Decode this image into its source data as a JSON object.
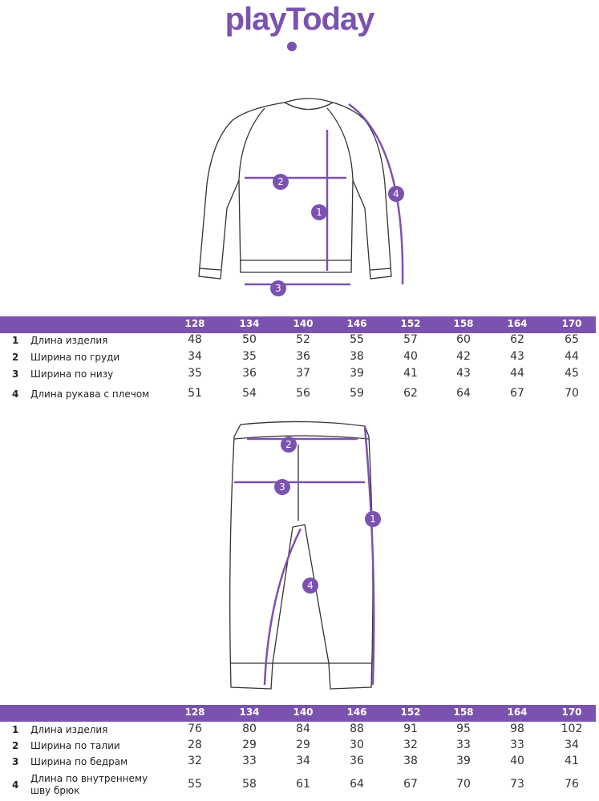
{
  "logo": {
    "text": "playToday",
    "color": "#7b52b0"
  },
  "accent_color": "#7b52b0",
  "top_table": {
    "sizes": [
      "128",
      "134",
      "140",
      "146",
      "152",
      "158",
      "164",
      "170"
    ],
    "rows": [
      {
        "num": "1",
        "label": "Длина изделия",
        "values": [
          "48",
          "50",
          "52",
          "55",
          "57",
          "60",
          "62",
          "65"
        ]
      },
      {
        "num": "2",
        "label": "Ширина по груди",
        "values": [
          "34",
          "35",
          "36",
          "38",
          "40",
          "42",
          "43",
          "44"
        ]
      },
      {
        "num": "3",
        "label": "Ширина по низу",
        "values": [
          "35",
          "36",
          "37",
          "39",
          "41",
          "43",
          "44",
          "45"
        ]
      },
      {
        "num": "4",
        "label": "Длина рукава с плечом",
        "values": [
          "51",
          "54",
          "56",
          "59",
          "62",
          "64",
          "67",
          "70"
        ]
      }
    ]
  },
  "bottom_table": {
    "sizes": [
      "128",
      "134",
      "140",
      "146",
      "152",
      "158",
      "164",
      "170"
    ],
    "rows": [
      {
        "num": "1",
        "label": "Длина изделия",
        "values": [
          "76",
          "80",
          "84",
          "88",
          "91",
          "95",
          "98",
          "102"
        ]
      },
      {
        "num": "2",
        "label": "Ширина по талии",
        "values": [
          "28",
          "29",
          "29",
          "30",
          "32",
          "33",
          "33",
          "34"
        ]
      },
      {
        "num": "3",
        "label": "Ширина по бедрам",
        "values": [
          "32",
          "33",
          "34",
          "36",
          "38",
          "39",
          "40",
          "41"
        ]
      },
      {
        "num": "4",
        "label": "Длина по внутреннему шву брюк",
        "values": [
          "55",
          "58",
          "61",
          "64",
          "67",
          "70",
          "73",
          "76"
        ]
      }
    ]
  },
  "sweater_markers": [
    "1",
    "2",
    "3",
    "4"
  ],
  "pants_markers": [
    "1",
    "2",
    "3",
    "4"
  ]
}
